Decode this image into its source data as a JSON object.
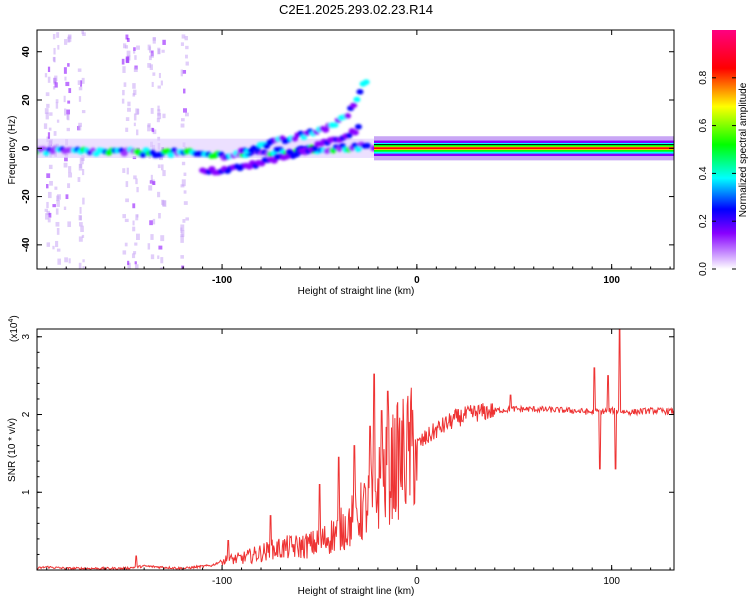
{
  "title": "C2E1.2025.293.02.23.R14",
  "chart_data": [
    {
      "type": "heatmap",
      "xlabel": "Height of straight line (km)",
      "ylabel": "Frequency (Hz)",
      "xlim": [
        -195,
        132
      ],
      "ylim": [
        -50,
        49
      ],
      "x_ticks": [
        -100,
        0,
        100
      ],
      "y_ticks": [
        -40,
        -20,
        0,
        20,
        40
      ],
      "colorbar": {
        "label": "Normalized spectral amplitude",
        "range": [
          0,
          1
        ],
        "ticks": [
          0.0,
          0.2,
          0.4,
          0.6,
          0.8
        ],
        "colors": [
          "#ffffff",
          "#9b30ff",
          "#0000ff",
          "#00ffff",
          "#00ff00",
          "#ffff00",
          "#ff0000",
          "#ff0080"
        ]
      },
      "ridges": [
        {
          "x": [
            -195,
            -120,
            -100,
            -80,
            -60,
            -40,
            -25
          ],
          "y": [
            -1,
            -2,
            -3,
            -2,
            -1,
            0,
            1
          ]
        },
        {
          "x": [
            -110,
            -90,
            -70,
            -55,
            -40,
            -30
          ],
          "y": [
            -10,
            -8,
            -4,
            0,
            4,
            8
          ]
        },
        {
          "x": [
            -90,
            -70,
            -55,
            -45,
            -35,
            -25
          ],
          "y": [
            -1,
            3,
            6,
            9,
            14,
            30
          ]
        },
        {
          "x": [
            -22,
            0,
            40,
            80,
            132
          ],
          "y": [
            0,
            0,
            0,
            0,
            0
          ]
        }
      ]
    },
    {
      "type": "line",
      "xlabel": "Height of straight line (km)",
      "ylabel": "SNR (10 * v/v)",
      "y_multiplier": "(x10",
      "y_multiplier_exp": "4",
      "y_multiplier_close": ")",
      "xlim": [
        -195,
        132
      ],
      "ylim": [
        0,
        3.1
      ],
      "x_ticks": [
        -100,
        0,
        100
      ],
      "y_ticks": [
        1,
        2,
        3
      ],
      "color": "#ee3333",
      "envelope": {
        "x": [
          -195,
          -190,
          -180,
          -150,
          -140,
          -120,
          -105,
          -100,
          -90,
          -80,
          -70,
          -60,
          -50,
          -40,
          -30,
          -25,
          -20,
          -15,
          -10,
          -5,
          0,
          10,
          20,
          30,
          40,
          50,
          60,
          70,
          80,
          90,
          100,
          110,
          120,
          132
        ],
        "y": [
          0.02,
          0.04,
          0.02,
          0.02,
          0.05,
          0.02,
          0.06,
          0.12,
          0.15,
          0.22,
          0.28,
          0.3,
          0.35,
          0.5,
          0.7,
          0.85,
          1.05,
          1.25,
          1.4,
          1.5,
          1.6,
          1.8,
          1.95,
          2.02,
          2.05,
          2.07,
          2.07,
          2.06,
          2.05,
          2.03,
          2.05,
          2.03,
          2.05,
          2.04
        ]
      },
      "spikes": [
        {
          "x": -144,
          "y": 0.18
        },
        {
          "x": -97,
          "y": 0.38
        },
        {
          "x": -75,
          "y": 0.7
        },
        {
          "x": -50,
          "y": 1.1
        },
        {
          "x": -40,
          "y": 1.45
        },
        {
          "x": -32,
          "y": 1.6
        },
        {
          "x": -24,
          "y": 1.85
        },
        {
          "x": -22,
          "y": 2.52
        },
        {
          "x": -18,
          "y": 2.05
        },
        {
          "x": -15,
          "y": 2.3
        },
        {
          "x": 48,
          "y": 2.25
        },
        {
          "x": 91,
          "y": 2.6
        },
        {
          "x": 94,
          "y": 1.3
        },
        {
          "x": 98,
          "y": 2.5
        },
        {
          "x": 102,
          "y": 1.3
        },
        {
          "x": 104,
          "y": 3.1
        }
      ]
    }
  ]
}
